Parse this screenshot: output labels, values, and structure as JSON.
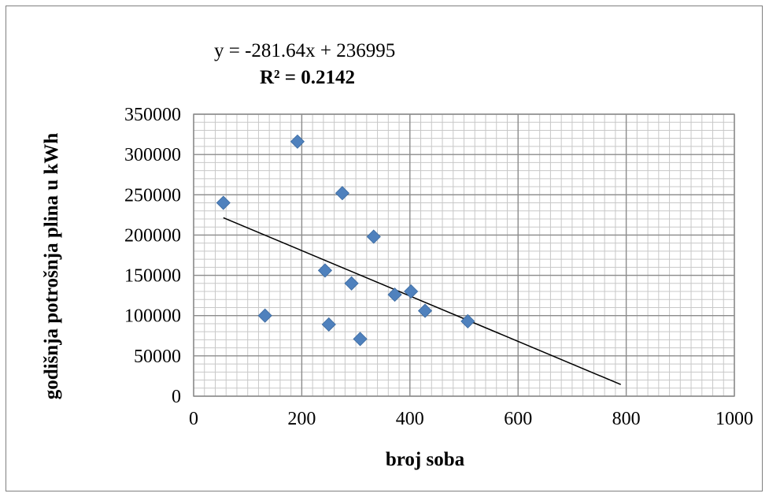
{
  "chart_data": {
    "type": "scatter",
    "title": "",
    "xlabel": "broj soba",
    "ylabel": "godišnja potrošnja plina u kWh",
    "xlim": [
      0,
      1000
    ],
    "ylim": [
      0,
      350000
    ],
    "x_ticks": [
      0,
      200,
      400,
      600,
      800,
      1000
    ],
    "y_ticks": [
      0,
      50000,
      100000,
      150000,
      200000,
      250000,
      300000,
      350000
    ],
    "x_tick_labels": [
      "0",
      "200",
      "400",
      "600",
      "800",
      "1000"
    ],
    "y_tick_labels": [
      "0",
      "50000",
      "100000",
      "150000",
      "200000",
      "250000",
      "300000",
      "350000"
    ],
    "grid": {
      "major": true,
      "minor": true,
      "x_minor_step": 20,
      "y_minor_step": 10000
    },
    "marker": {
      "shape": "diamond",
      "color": "#4f81bd"
    },
    "points": [
      {
        "x": 55,
        "y": 240000
      },
      {
        "x": 132,
        "y": 100000
      },
      {
        "x": 192,
        "y": 316000
      },
      {
        "x": 243,
        "y": 156000
      },
      {
        "x": 250,
        "y": 89000
      },
      {
        "x": 275,
        "y": 252000
      },
      {
        "x": 292,
        "y": 140000
      },
      {
        "x": 308,
        "y": 71000
      },
      {
        "x": 333,
        "y": 198000
      },
      {
        "x": 372,
        "y": 126000
      },
      {
        "x": 402,
        "y": 130000
      },
      {
        "x": 428,
        "y": 106000
      },
      {
        "x": 507,
        "y": 93000
      }
    ],
    "trendline": {
      "type": "linear",
      "slope": -281.64,
      "intercept": 236995,
      "x_start": 55,
      "x_end": 790,
      "color": "#000000",
      "equation": "y = -281.64x + 236995",
      "r_squared": "R² = 0.2142"
    }
  }
}
